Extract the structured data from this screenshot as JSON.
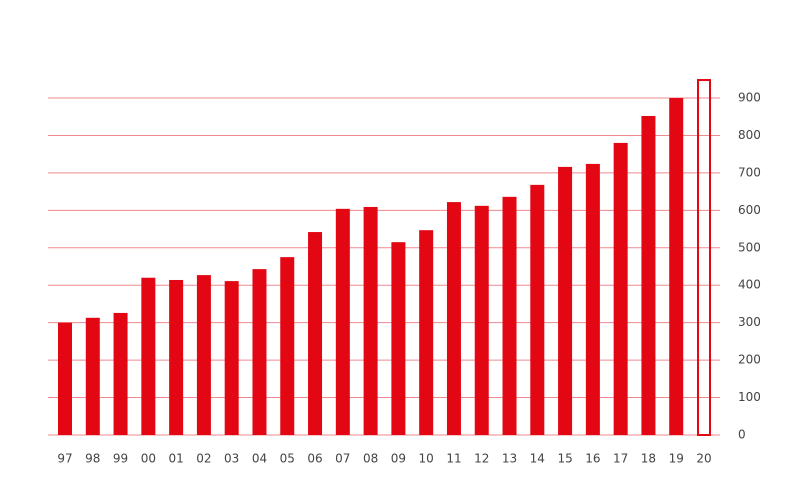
{
  "chart_data": {
    "type": "bar",
    "categories": [
      "97",
      "98",
      "99",
      "00",
      "01",
      "02",
      "03",
      "04",
      "05",
      "06",
      "07",
      "08",
      "09",
      "10",
      "11",
      "12",
      "13",
      "14",
      "15",
      "16",
      "17",
      "18",
      "19",
      "20"
    ],
    "values": [
      300,
      313,
      326,
      420,
      414,
      427,
      411,
      443,
      475,
      542,
      604,
      609,
      515,
      547,
      622,
      612,
      636,
      668,
      716,
      724,
      780,
      852,
      900,
      948
    ],
    "outlined": [
      false,
      false,
      false,
      false,
      false,
      false,
      false,
      false,
      false,
      false,
      false,
      false,
      false,
      false,
      false,
      false,
      false,
      false,
      false,
      false,
      false,
      false,
      false,
      true
    ],
    "color": "#e30613",
    "ylim": [
      0,
      900
    ],
    "yticks": [
      0,
      100,
      200,
      300,
      400,
      500,
      600,
      700,
      800,
      900
    ],
    "grid": true,
    "y_axis_side": "right"
  }
}
